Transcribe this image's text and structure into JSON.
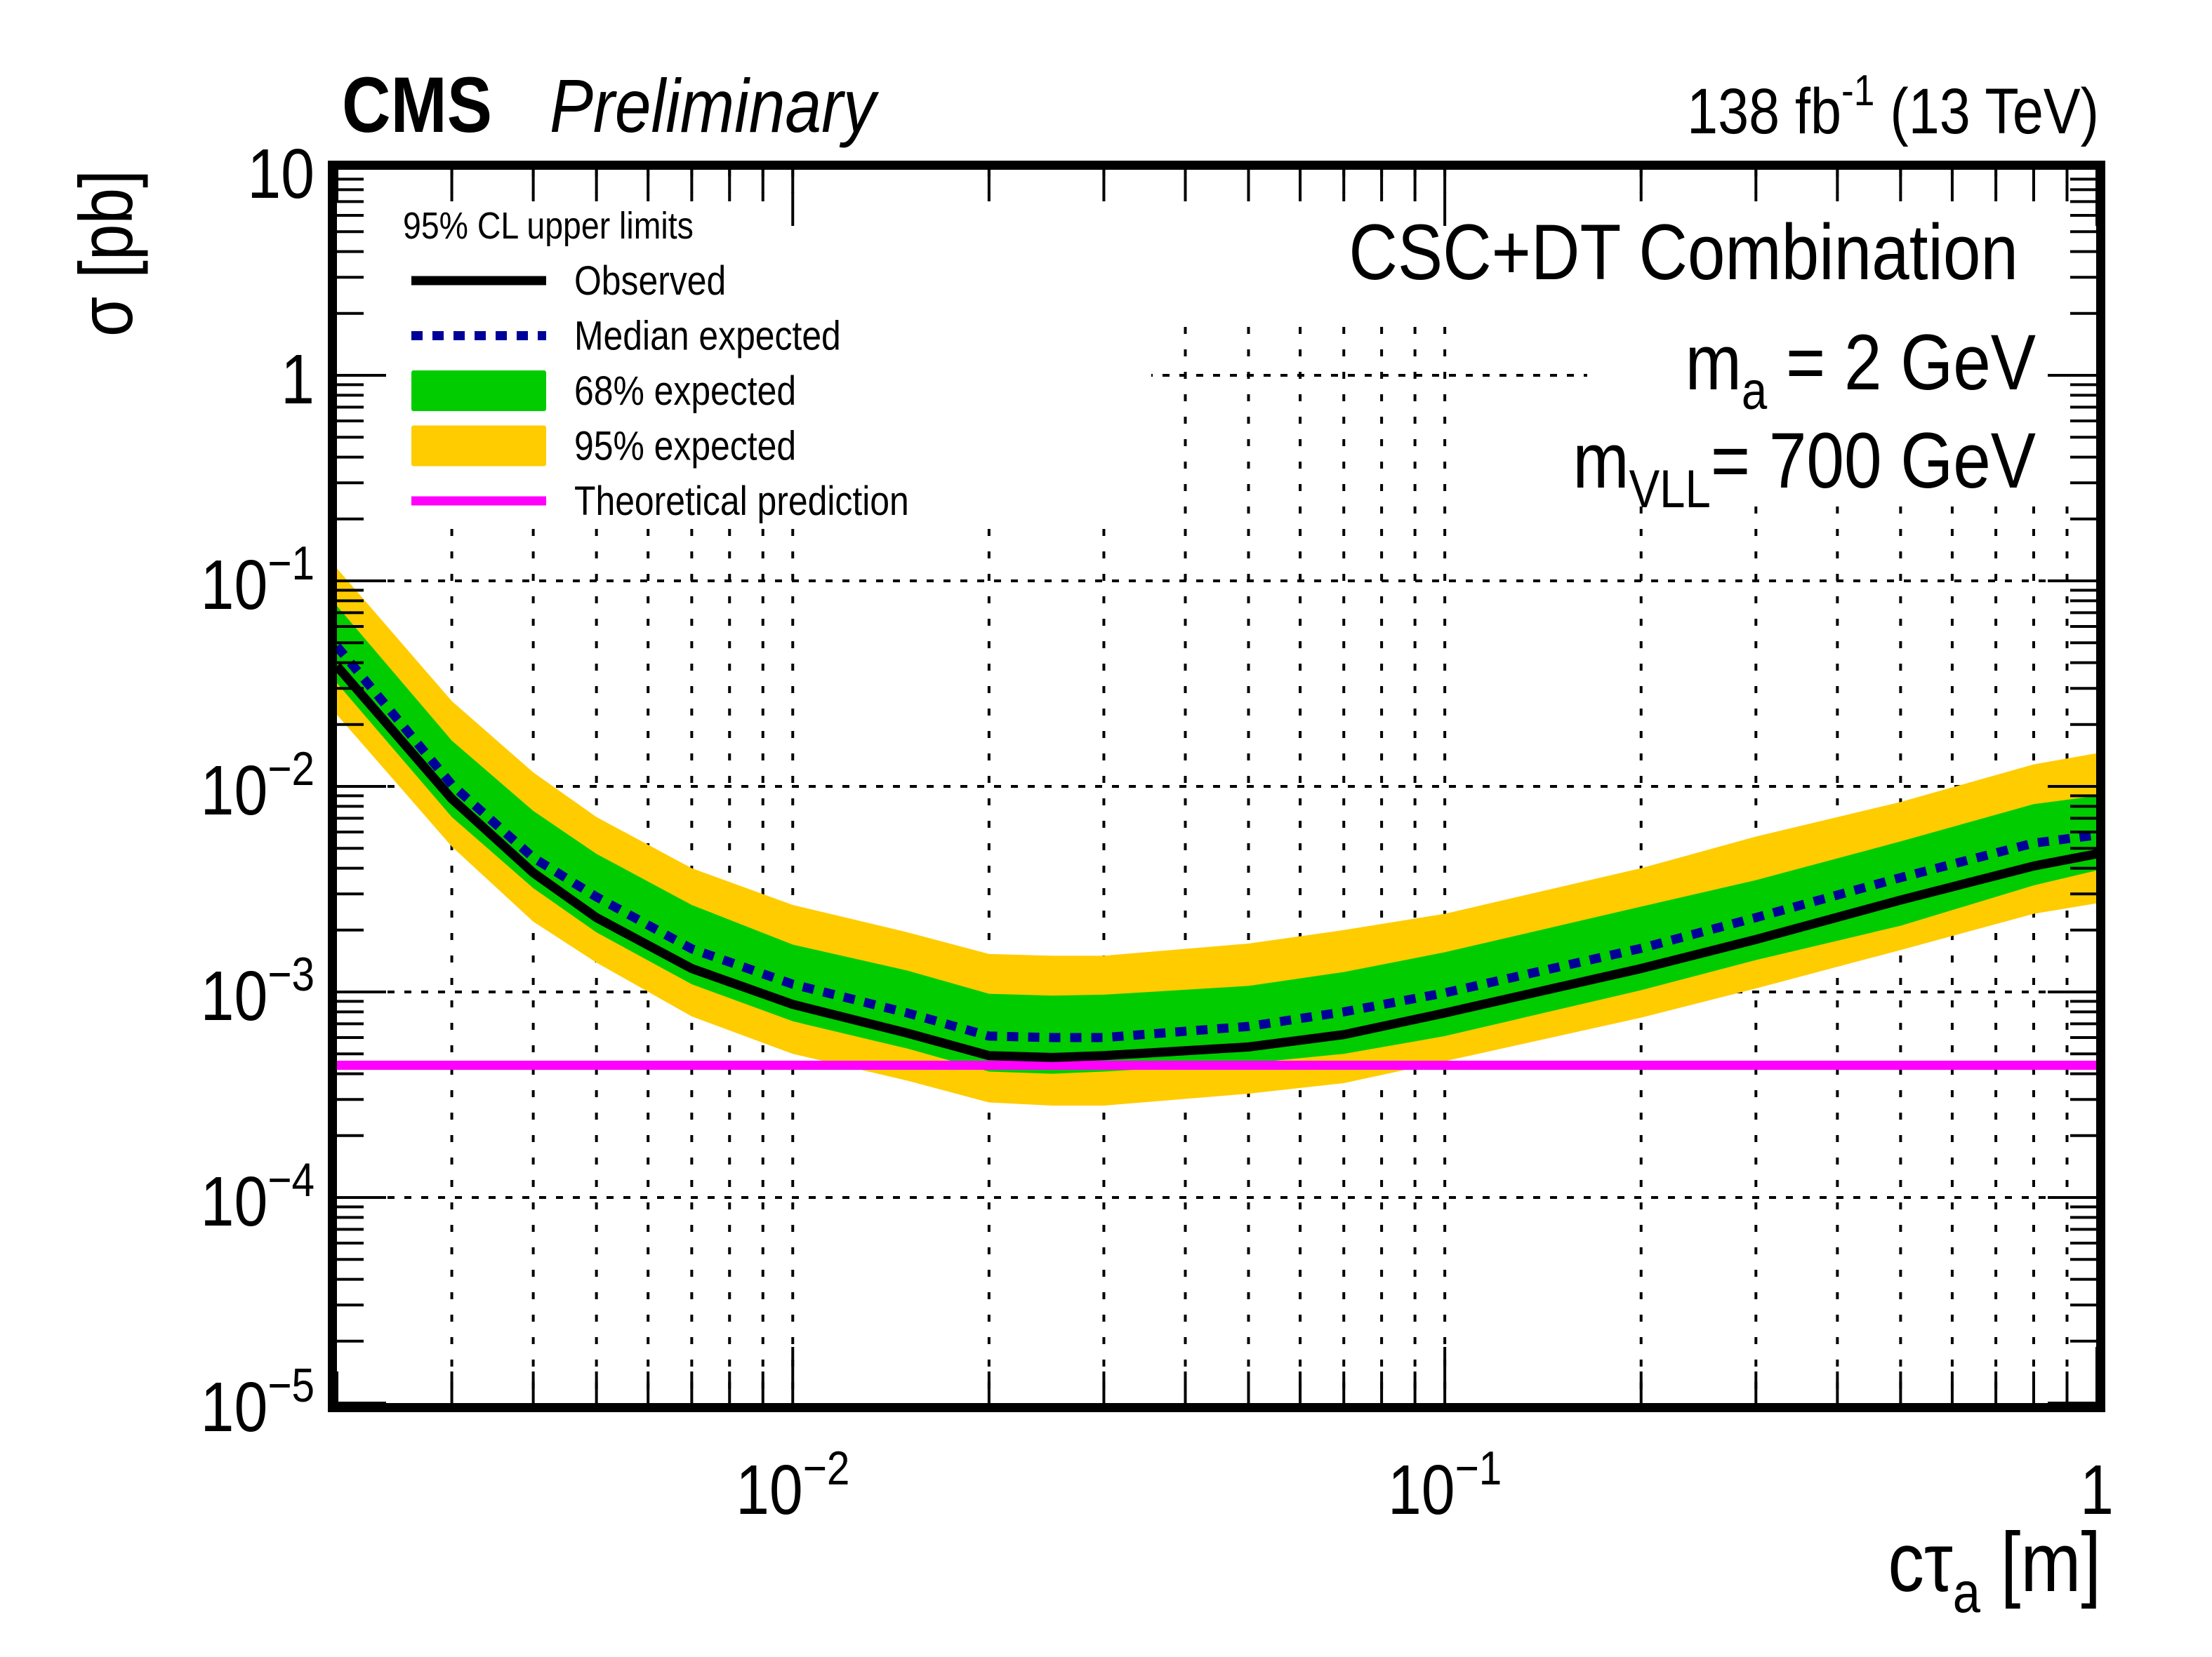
{
  "header": {
    "experiment": "CMS",
    "status": "Preliminary",
    "lumi_prefix": "138 fb",
    "lumi_exponent": "-1",
    "energy": "(13 TeV)"
  },
  "annotations": {
    "analysis": "CSC+DT Combination",
    "mass_a_symbol": "m",
    "mass_a_sub": "a",
    "mass_a_value": " = 2 GeV",
    "mass_vll_symbol": "m",
    "mass_vll_sub": "VLL",
    "mass_vll_value": "= 700 GeV"
  },
  "legend": {
    "header": "95% CL upper limits",
    "entries": [
      {
        "label": "Observed",
        "style": "line",
        "color": "#000000"
      },
      {
        "label": "Median expected",
        "style": "dashed",
        "color": "#000099"
      },
      {
        "label": "68% expected",
        "style": "band",
        "color": "#00cc00"
      },
      {
        "label": "95% expected",
        "style": "band",
        "color": "#ffcc00"
      },
      {
        "label": "Theoretical prediction",
        "style": "line",
        "color": "#ff00ff"
      }
    ]
  },
  "chart_data": {
    "type": "line",
    "title": "CSC+DT Combination",
    "xlabel_main": "cτ",
    "xlabel_sub": "a",
    "xlabel_unit": " [m]",
    "ylabel": "σ [pb]",
    "xscale": "log",
    "yscale": "log",
    "xlim": [
      0.002,
      1
    ],
    "ylim": [
      1e-05,
      10
    ],
    "grid": true,
    "legend_position": "top-left",
    "x_tick_labels": [
      {
        "value": 0.01,
        "base": "10",
        "exp": "−2"
      },
      {
        "value": 0.1,
        "base": "10",
        "exp": "−1"
      },
      {
        "value": 1,
        "base": "1",
        "exp": ""
      }
    ],
    "y_tick_labels": [
      {
        "value": 10,
        "base": "10",
        "exp": ""
      },
      {
        "value": 1,
        "base": "1",
        "exp": ""
      },
      {
        "value": 0.1,
        "base": "10",
        "exp": "−1"
      },
      {
        "value": 0.01,
        "base": "10",
        "exp": "−2"
      },
      {
        "value": 0.001,
        "base": "10",
        "exp": "−3"
      },
      {
        "value": 0.0001,
        "base": "10",
        "exp": "−4"
      },
      {
        "value": 1e-05,
        "base": "10",
        "exp": "−5"
      }
    ],
    "x": [
      0.002,
      0.003,
      0.004,
      0.005,
      0.007,
      0.01,
      0.015,
      0.02,
      0.025,
      0.03,
      0.05,
      0.07,
      0.1,
      0.2,
      0.3,
      0.5,
      0.8,
      1.0
    ],
    "series": [
      {
        "name": "Observed",
        "color": "#000000",
        "values": [
          0.0385,
          0.0087,
          0.0038,
          0.0023,
          0.0013,
          0.00087,
          0.00063,
          0.00049,
          0.00048,
          0.00049,
          0.00054,
          0.00062,
          0.00079,
          0.0013,
          0.0018,
          0.0028,
          0.0041,
          0.0047
        ]
      },
      {
        "name": "Median expected",
        "color": "#000099",
        "values": [
          0.048,
          0.0102,
          0.0045,
          0.0029,
          0.00162,
          0.00109,
          0.00079,
          0.00061,
          0.0006,
          0.0006,
          0.00068,
          0.0008,
          0.00099,
          0.00163,
          0.0023,
          0.0036,
          0.0053,
          0.0058
        ]
      },
      {
        "name": "68% expected",
        "color": "#00cc00",
        "low": [
          0.0318,
          0.0071,
          0.0032,
          0.00195,
          0.00109,
          0.00072,
          0.00053,
          0.00041,
          0.0004,
          0.00041,
          0.00045,
          0.0005,
          0.00061,
          0.00102,
          0.00143,
          0.0021,
          0.0033,
          0.0039
        ],
        "high": [
          0.0755,
          0.0167,
          0.0076,
          0.0047,
          0.00265,
          0.0017,
          0.00127,
          0.00098,
          0.00096,
          0.00097,
          0.00107,
          0.00125,
          0.00156,
          0.0026,
          0.0035,
          0.0054,
          0.0082,
          0.009
        ]
      },
      {
        "name": "95% expected",
        "color": "#ffcc00",
        "low": [
          0.0223,
          0.0051,
          0.0022,
          0.00139,
          0.00076,
          0.0005,
          0.00037,
          0.00029,
          0.00028,
          0.00028,
          0.00032,
          0.00036,
          0.00046,
          0.00075,
          0.00104,
          0.0016,
          0.0024,
          0.0027
        ],
        "high": [
          0.115,
          0.026,
          0.0117,
          0.0071,
          0.004,
          0.00265,
          0.00195,
          0.00153,
          0.0015,
          0.0015,
          0.00172,
          0.002,
          0.0024,
          0.004,
          0.0057,
          0.0084,
          0.0128,
          0.0145
        ]
      },
      {
        "name": "Theoretical prediction",
        "color": "#ff00ff",
        "constant": 0.00044
      }
    ]
  }
}
